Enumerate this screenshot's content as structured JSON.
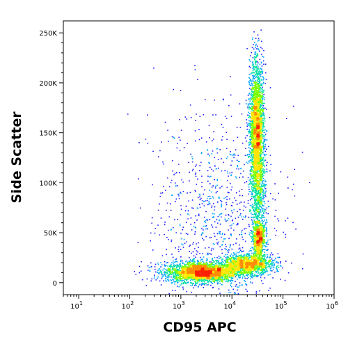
{
  "chart_data": {
    "type": "scatter",
    "title": "",
    "xlabel": "CD95 APC",
    "ylabel": "Side Scatter",
    "x_scale": "log",
    "xlim": [
      5,
      1000000
    ],
    "ylim": [
      -12000,
      262000
    ],
    "grid": false,
    "legend": "none",
    "x_ticks": [
      {
        "value": 10,
        "base": "10",
        "exp": "1"
      },
      {
        "value": 100,
        "base": "10",
        "exp": "2"
      },
      {
        "value": 1000,
        "base": "10",
        "exp": "3"
      },
      {
        "value": 10000,
        "base": "10",
        "exp": "4"
      },
      {
        "value": 100000,
        "base": "10",
        "exp": "5"
      },
      {
        "value": 1000000,
        "base": "10",
        "exp": "6"
      }
    ],
    "y_ticks": [
      {
        "value": 0,
        "label": "0"
      },
      {
        "value": 50000,
        "label": "50K"
      },
      {
        "value": 100000,
        "label": "100K"
      },
      {
        "value": 150000,
        "label": "150K"
      },
      {
        "value": 200000,
        "label": "200K"
      },
      {
        "value": 250000,
        "label": "250K"
      }
    ],
    "populations": [
      {
        "x_center": 2500,
        "y_center": 11000,
        "x_spread_log": 0.35,
        "y_spread": 5000,
        "weight": 0.3
      },
      {
        "x_center": 20000,
        "y_center": 19000,
        "x_spread_log": 0.25,
        "y_spread": 5000,
        "weight": 0.16
      },
      {
        "x_center": 30000,
        "y_center": 155000,
        "x_spread_log": 0.07,
        "y_spread": 32000,
        "weight": 0.28
      },
      {
        "x_center": 33000,
        "y_center": 45000,
        "x_spread_log": 0.06,
        "y_spread": 9000,
        "weight": 0.08
      },
      {
        "x_center": 32000,
        "y_center": 90000,
        "x_spread_log": 0.07,
        "y_spread": 35000,
        "weight": 0.08
      },
      {
        "x_center": 5000,
        "y_center": 60000,
        "x_spread_log": 0.6,
        "y_spread": 55000,
        "weight": 0.1
      }
    ],
    "density_colors": [
      "#1a1aff",
      "#00a6ff",
      "#00e0a0",
      "#7dff00",
      "#ffe600",
      "#ff8c00",
      "#ff2000"
    ]
  }
}
